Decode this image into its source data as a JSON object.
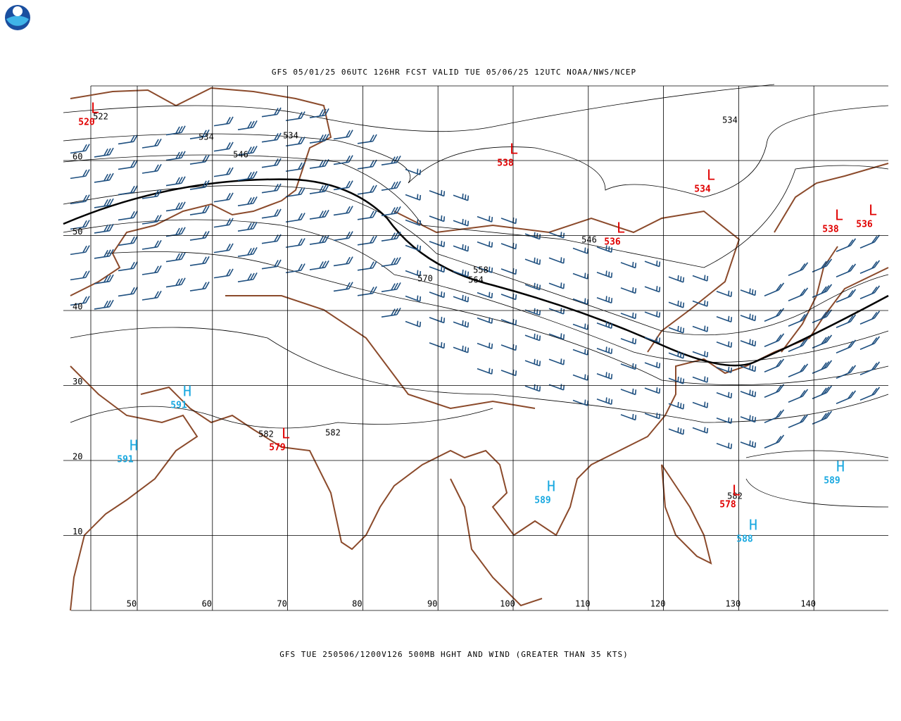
{
  "header": {
    "title": "GFS 05/01/25 06UTC 126HR FCST VALID TUE 05/06/25 12UTC NOAA/NWS/NCEP"
  },
  "footer": {
    "caption": "GFS TUE 250506/1200V126 500MB HGHT AND WIND (GREATER THAN 35 KTS)"
  },
  "latitudes": [
    60,
    50,
    40,
    30,
    20,
    10
  ],
  "longitudes": [
    50,
    60,
    70,
    80,
    90,
    100,
    110,
    120,
    130,
    140
  ],
  "contour_labels": [
    "522",
    "534",
    "534",
    "546",
    "534",
    "546",
    "558",
    "564",
    "570",
    "582",
    "582",
    "582"
  ],
  "centers": [
    {
      "letter": "L",
      "value": "520"
    },
    {
      "letter": "L",
      "value": "538"
    },
    {
      "letter": "L",
      "value": "534"
    },
    {
      "letter": "L",
      "value": "536"
    },
    {
      "letter": "L",
      "value": "538"
    },
    {
      "letter": "L",
      "value": "536"
    },
    {
      "letter": "L",
      "value": "579"
    },
    {
      "letter": "L",
      "value": "578"
    },
    {
      "letter": "H",
      "value": "591"
    },
    {
      "letter": "H",
      "value": "591"
    },
    {
      "letter": "H",
      "value": "589"
    },
    {
      "letter": "H",
      "value": "588"
    },
    {
      "letter": "H",
      "value": "589"
    }
  ]
}
